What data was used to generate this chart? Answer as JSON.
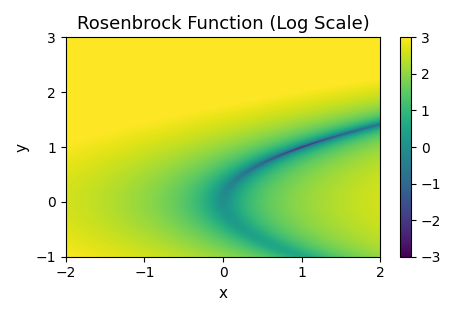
{
  "title": "Rosenbrock Function (Log Scale)",
  "xlabel": "x",
  "ylabel": "y",
  "x_range": [
    -2,
    2
  ],
  "y_range": [
    -1,
    3
  ],
  "n_points": 500,
  "colormap": "viridis",
  "colorbar_ticks": [
    -3,
    -2,
    -1,
    0,
    1,
    2,
    3
  ],
  "title_fontsize": 13,
  "label_fontsize": 11,
  "figsize": [
    4.74,
    3.16
  ],
  "dpi": 100,
  "vmin": -3,
  "vmax": 3
}
